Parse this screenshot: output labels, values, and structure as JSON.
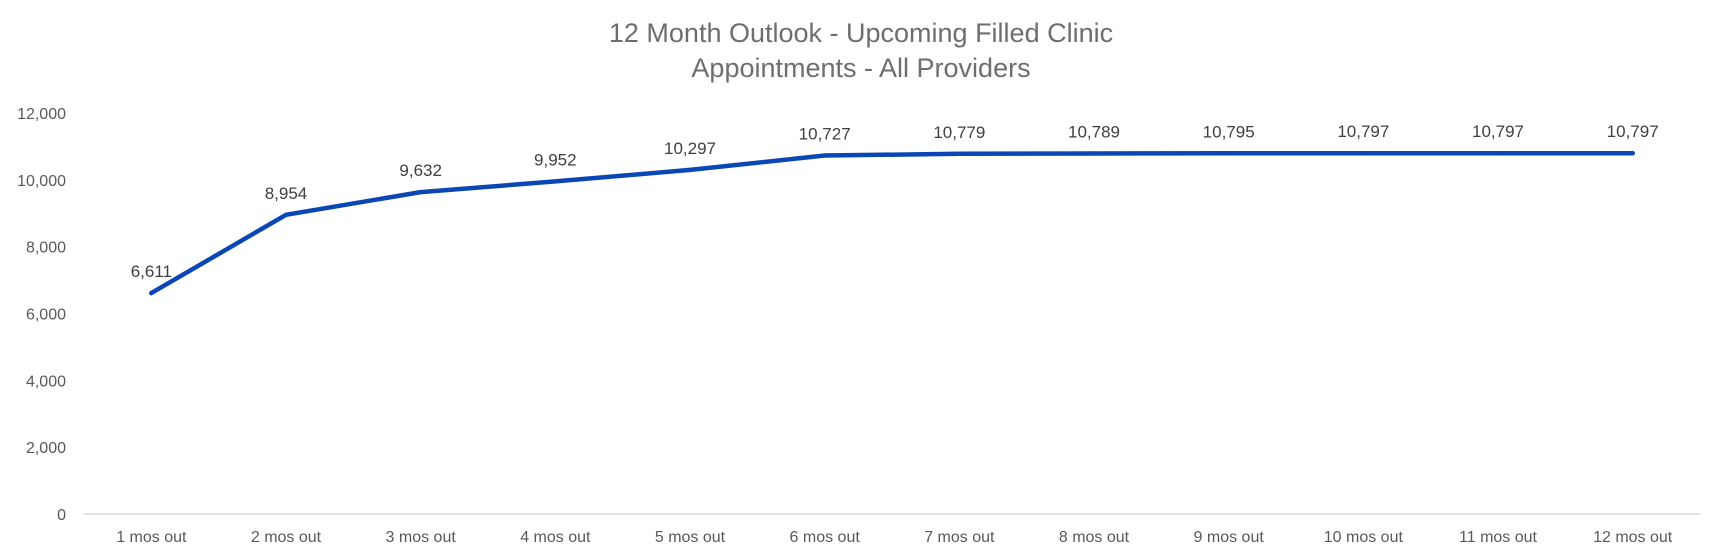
{
  "chart_data": {
    "type": "line",
    "title_lines": [
      "12 Month Outlook - Upcoming Filled Clinic",
      "Appointments - All Providers"
    ],
    "categories": [
      "1 mos out",
      "2 mos out",
      "3 mos out",
      "4 mos out",
      "5 mos out",
      "6 mos out",
      "7 mos out",
      "8 mos out",
      "9 mos out",
      "10 mos out",
      "11 mos out",
      "12 mos out"
    ],
    "series": [
      {
        "values": [
          6611,
          8954,
          9632,
          9952,
          10297,
          10727,
          10779,
          10789,
          10795,
          10797,
          10797,
          10797
        ],
        "data_labels": [
          "6,611",
          "8,954",
          "9,632",
          "9,952",
          "10,297",
          "10,727",
          "10,779",
          "10,789",
          "10,795",
          "10,797",
          "10,797",
          "10,797"
        ],
        "color": "#0a47b5"
      }
    ],
    "y_ticks": [
      "0",
      "2,000",
      "4,000",
      "6,000",
      "8,000",
      "10,000",
      "12,000"
    ],
    "ylim": [
      0,
      12000
    ],
    "grid": false,
    "legend": "none",
    "colors": {
      "line": "#0a47b5",
      "axis": "#d9d9d9",
      "title": "#6e6e6e",
      "tick_text": "#595959",
      "label_text": "#404040"
    }
  }
}
